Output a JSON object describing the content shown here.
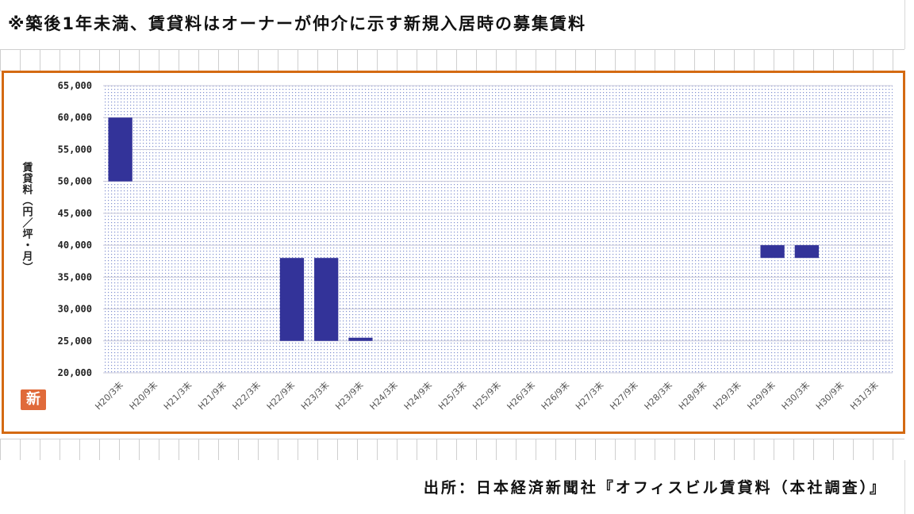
{
  "note": "※築後1年未満、賃貸料はオーナーが仲介に示す新規入居時の募集賃料",
  "source": "出所：日本経済新聞社『オフィスビル賃貸料（本社調査）』",
  "badge": "新",
  "colors": {
    "frame": "#d46a12",
    "bar": "#333399",
    "plot_dots": "#7f8fcf",
    "badge_bg": "#e06a3a"
  },
  "chart_data": {
    "type": "bar",
    "subtype": "floating-range",
    "ylabel": "賃貸料（円／坪・月）",
    "ylim": [
      20000,
      65000
    ],
    "y_ticks": [
      20000,
      25000,
      30000,
      35000,
      40000,
      45000,
      50000,
      55000,
      60000,
      65000
    ],
    "y_tick_labels": [
      "20,000",
      "25,000",
      "30,000",
      "35,000",
      "40,000",
      "45,000",
      "50,000",
      "55,000",
      "60,000",
      "65,000"
    ],
    "grid": true,
    "categories": [
      "H20/3末",
      "H20/9末",
      "H21/3末",
      "H21/9末",
      "H22/3末",
      "H22/9末",
      "H23/3末",
      "H23/9末",
      "H24/3末",
      "H24/9末",
      "H25/3末",
      "H25/9末",
      "H26/3末",
      "H26/9末",
      "H27/3末",
      "H27/9末",
      "H28/3末",
      "H28/9末",
      "H29/3末",
      "H29/9末",
      "H30/3末",
      "H30/9末",
      "H31/3末"
    ],
    "series": [
      {
        "low": [
          50000,
          null,
          null,
          null,
          null,
          25000,
          25000,
          25000,
          null,
          null,
          null,
          null,
          null,
          null,
          null,
          null,
          null,
          null,
          null,
          38000,
          38000,
          null,
          null
        ],
        "high": [
          60000,
          null,
          null,
          null,
          null,
          38000,
          38000,
          25500,
          null,
          null,
          null,
          null,
          null,
          null,
          null,
          null,
          null,
          null,
          null,
          40000,
          40000,
          null,
          null
        ]
      }
    ]
  }
}
